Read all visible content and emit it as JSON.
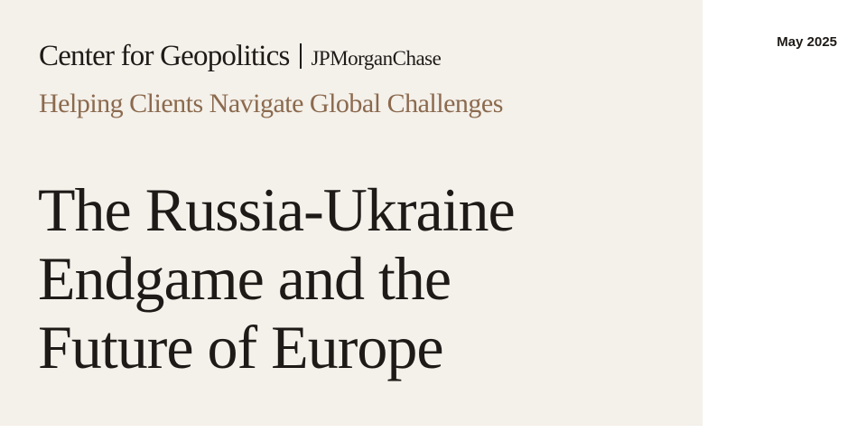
{
  "header": {
    "org_name": "Center for Geopolitics",
    "partner": "JPMorganChase",
    "tagline": "Helping Clients Navigate Global Challenges"
  },
  "title_lines": [
    "The Russia-Ukraine",
    "Endgame and the",
    "Future of Europe"
  ],
  "date": "May 2025",
  "colors": {
    "panel": "#f4f0ea",
    "tagline": "#8b6a4e",
    "text": "#1e1a17"
  }
}
